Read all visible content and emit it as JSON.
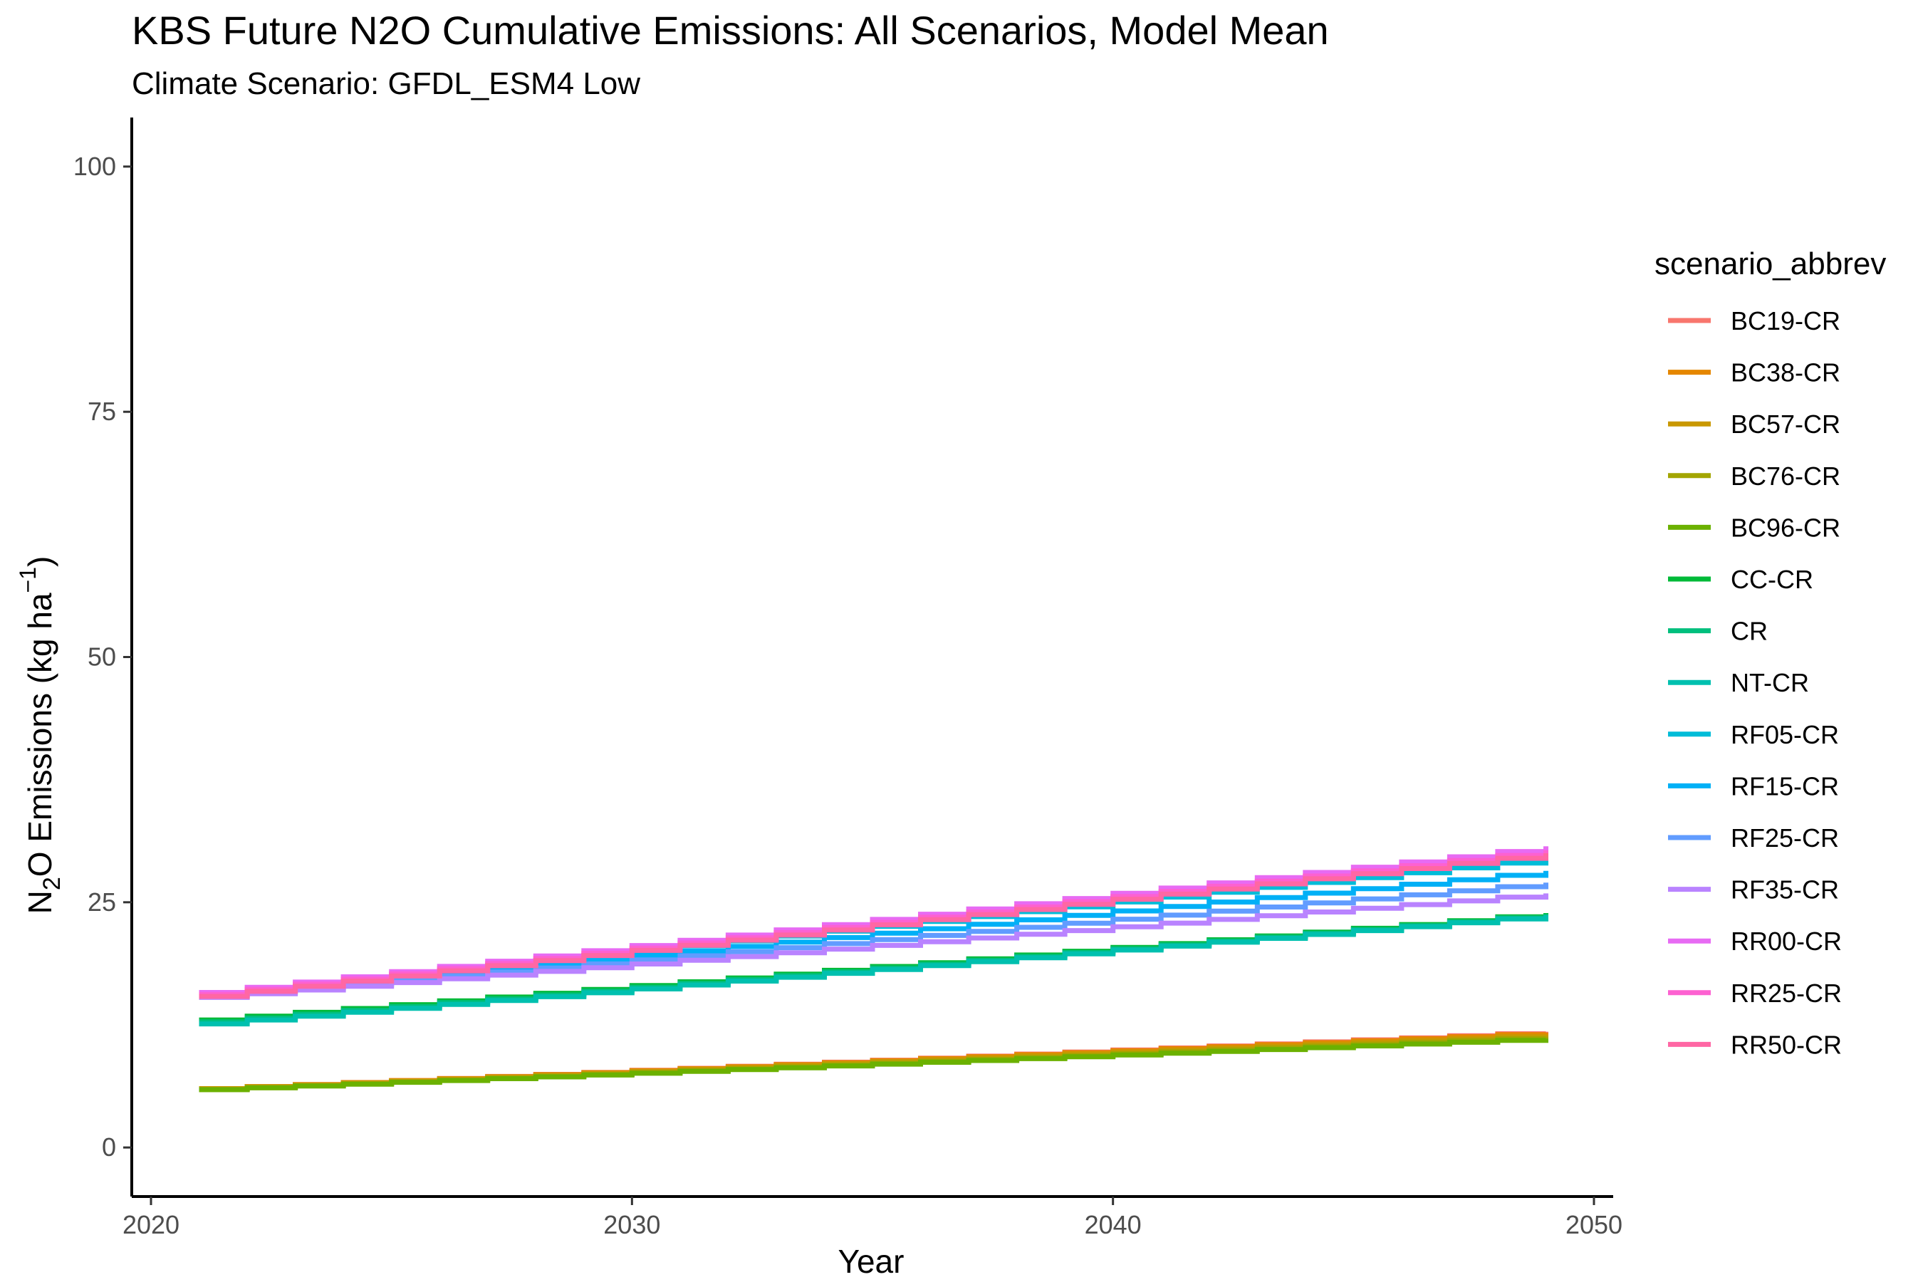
{
  "chart_data": {
    "type": "line",
    "title": "KBS  Future N2O Cumulative Emissions: All Scenarios, Model Mean",
    "subtitle": "Climate Scenario: GFDL_ESM4 Low",
    "xlabel": "Year",
    "ylabel_main": "N",
    "ylabel_sub": "2",
    "ylabel_mid": "O Emissions (kg ha",
    "ylabel_sup": "−1",
    "ylabel_end": ")",
    "xlim": [
      2019.6,
      2050.4
    ],
    "ylim": [
      -5,
      105
    ],
    "x_ticks": [
      2020,
      2030,
      2040,
      2050
    ],
    "y_ticks": [
      0,
      25,
      50,
      75,
      100
    ],
    "x_tick_labels": [
      "2020",
      "2030",
      "2040",
      "2050"
    ],
    "y_tick_labels": [
      "0",
      "25",
      "50",
      "75",
      "100"
    ],
    "grid": false,
    "legend_title": "scenario_abbrev",
    "legend_position": "right",
    "x": [
      2021,
      2022,
      2023,
      2024,
      2025,
      2026,
      2027,
      2028,
      2029,
      2030,
      2031,
      2032,
      2033,
      2034,
      2035,
      2036,
      2037,
      2038,
      2039,
      2040,
      2041,
      2042,
      2043,
      2044,
      2045,
      2046,
      2047,
      2048,
      2049
    ],
    "series": [
      {
        "name": "BC19-CR",
        "color": "#F8766D",
        "start": 6.0,
        "end": 11.8
      },
      {
        "name": "BC38-CR",
        "color": "#E58700",
        "start": 6.0,
        "end": 11.7
      },
      {
        "name": "BC57-CR",
        "color": "#C99800",
        "start": 6.0,
        "end": 11.5
      },
      {
        "name": "BC76-CR",
        "color": "#A3A500",
        "start": 5.9,
        "end": 11.3
      },
      {
        "name": "BC96-CR",
        "color": "#6BB100",
        "start": 5.9,
        "end": 11.1
      },
      {
        "name": "CC-CR",
        "color": "#00BA38",
        "start": 13.0,
        "end": 23.9
      },
      {
        "name": "CR",
        "color": "#00BF7D",
        "start": 12.8,
        "end": 23.8
      },
      {
        "name": "NT-CR",
        "color": "#00C0AF",
        "start": 12.6,
        "end": 23.7
      },
      {
        "name": "RF05-CR",
        "color": "#00BCD8",
        "start": 15.6,
        "end": 29.5
      },
      {
        "name": "RF15-CR",
        "color": "#00B0F6",
        "start": 15.5,
        "end": 28.2
      },
      {
        "name": "RF25-CR",
        "color": "#619CFF",
        "start": 15.4,
        "end": 27.0
      },
      {
        "name": "RF35-CR",
        "color": "#B983FF",
        "start": 15.3,
        "end": 25.9
      },
      {
        "name": "RR00-CR",
        "color": "#E76BF3",
        "start": 15.8,
        "end": 30.7
      },
      {
        "name": "RR25-CR",
        "color": "#FD61D1",
        "start": 15.6,
        "end": 30.3
      },
      {
        "name": "RR50-CR",
        "color": "#FF67A4",
        "start": 15.4,
        "end": 30.0
      }
    ]
  }
}
